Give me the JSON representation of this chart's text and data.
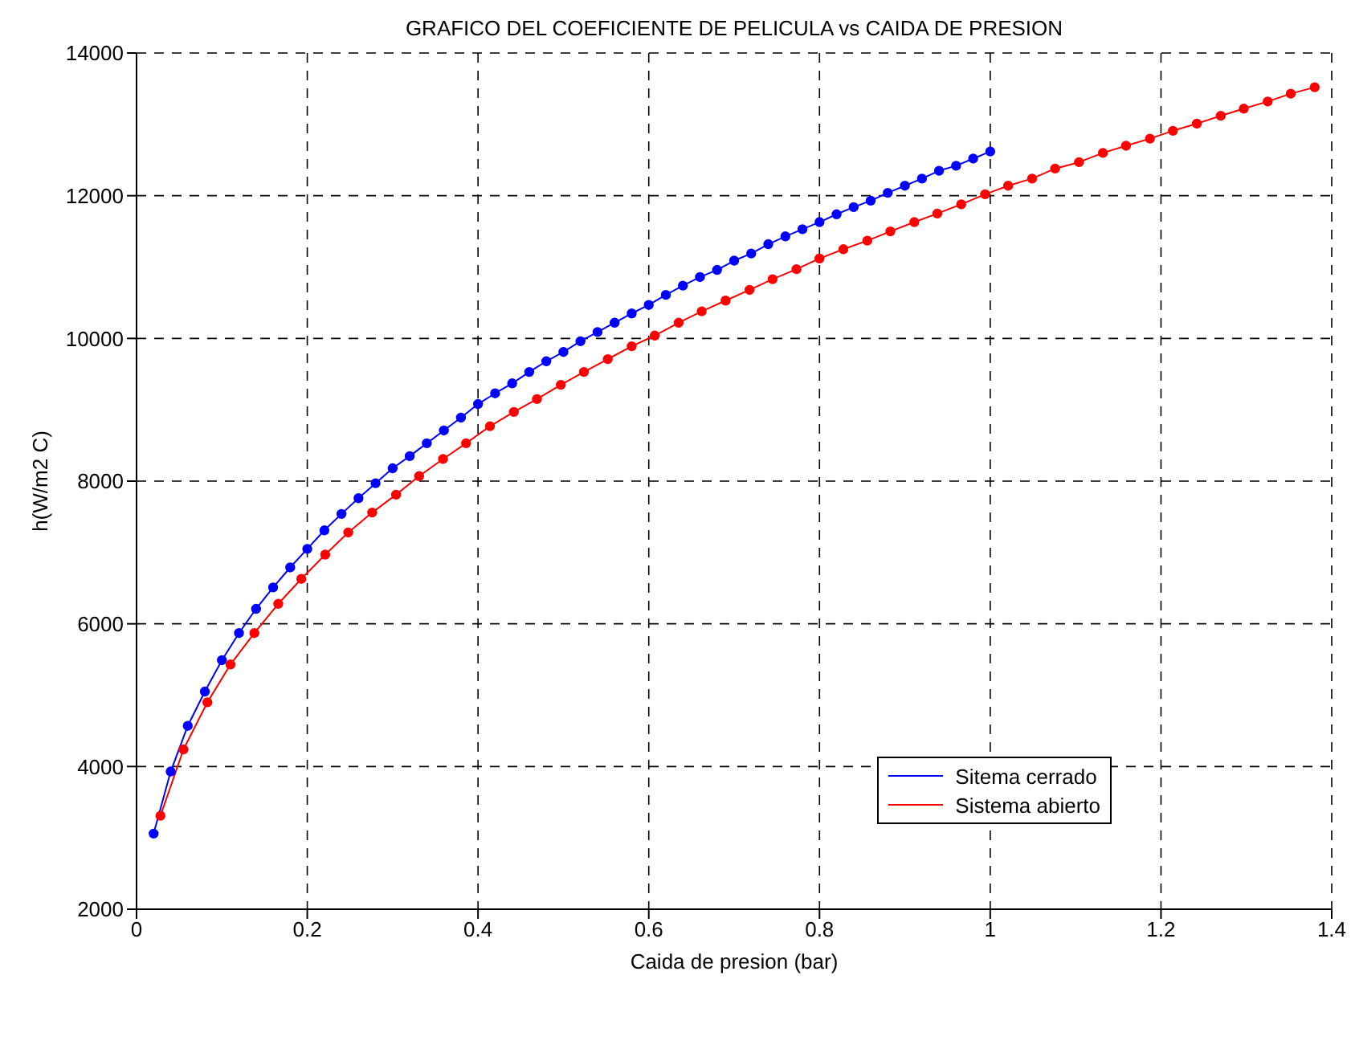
{
  "chart_data": {
    "type": "line",
    "title": "GRAFICO DEL COEFICIENTE DE PELICULA vs CAIDA DE PRESION",
    "xlabel": "Caida de presion (bar)",
    "ylabel": "h(W/m2 C)",
    "xlim": [
      0,
      1.4
    ],
    "xticks": [
      0,
      0.2,
      0.4,
      0.6,
      0.8,
      1,
      1.2,
      1.4
    ],
    "ylim": [
      2000,
      14000
    ],
    "yticks": [
      2000,
      4000,
      6000,
      8000,
      10000,
      12000,
      14000
    ],
    "grid": true,
    "legend": "bottom right",
    "marker": "circle",
    "line_style": "solid",
    "series": [
      {
        "name": "Sitema cerrado",
        "color": "#0000ff",
        "x": [
          0.02,
          0.04,
          0.06,
          0.08,
          0.1,
          0.12,
          0.14,
          0.16,
          0.18,
          0.2,
          0.22,
          0.24,
          0.26,
          0.28,
          0.3,
          0.32,
          0.34,
          0.36,
          0.38,
          0.4,
          0.42,
          0.44,
          0.46,
          0.48,
          0.5,
          0.52,
          0.54,
          0.56,
          0.58,
          0.6,
          0.62,
          0.64,
          0.66,
          0.68,
          0.7,
          0.72,
          0.74,
          0.76,
          0.78,
          0.8,
          0.82,
          0.84,
          0.86,
          0.88,
          0.9,
          0.92,
          0.94,
          0.96,
          0.98,
          1.0
        ],
        "values": [
          3060,
          3930,
          4570,
          5050,
          5490,
          5870,
          6210,
          6510,
          6790,
          7050,
          7310,
          7540,
          7760,
          7970,
          8180,
          8350,
          8530,
          8710,
          8890,
          9080,
          9230,
          9370,
          9530,
          9680,
          9810,
          9960,
          10090,
          10220,
          10350,
          10470,
          10610,
          10740,
          10860,
          10960,
          11090,
          11190,
          11320,
          11430,
          11530,
          11630,
          11740,
          11840,
          11930,
          12040,
          12140,
          12240,
          12350,
          12420,
          12520,
          12620
        ]
      },
      {
        "name": "Sistema abierto",
        "color": "#ff0000",
        "x": [
          0.028,
          0.055,
          0.083,
          0.11,
          0.138,
          0.166,
          0.193,
          0.221,
          0.248,
          0.276,
          0.304,
          0.331,
          0.359,
          0.386,
          0.414,
          0.442,
          0.469,
          0.497,
          0.524,
          0.552,
          0.58,
          0.607,
          0.635,
          0.662,
          0.69,
          0.718,
          0.745,
          0.773,
          0.8,
          0.828,
          0.856,
          0.883,
          0.911,
          0.938,
          0.966,
          0.994,
          1.021,
          1.049,
          1.076,
          1.104,
          1.132,
          1.159,
          1.187,
          1.214,
          1.242,
          1.27,
          1.297,
          1.325,
          1.352,
          1.38
        ],
        "values": [
          3310,
          4240,
          4900,
          5430,
          5870,
          6280,
          6630,
          6970,
          7280,
          7560,
          7810,
          8070,
          8310,
          8530,
          8770,
          8970,
          9150,
          9350,
          9530,
          9710,
          9890,
          10040,
          10220,
          10380,
          10530,
          10680,
          10830,
          10970,
          11120,
          11250,
          11370,
          11500,
          11630,
          11750,
          11880,
          12020,
          12140,
          12240,
          12380,
          12470,
          12600,
          12700,
          12800,
          12910,
          13010,
          13120,
          13220,
          13320,
          13430,
          13520
        ]
      }
    ]
  }
}
